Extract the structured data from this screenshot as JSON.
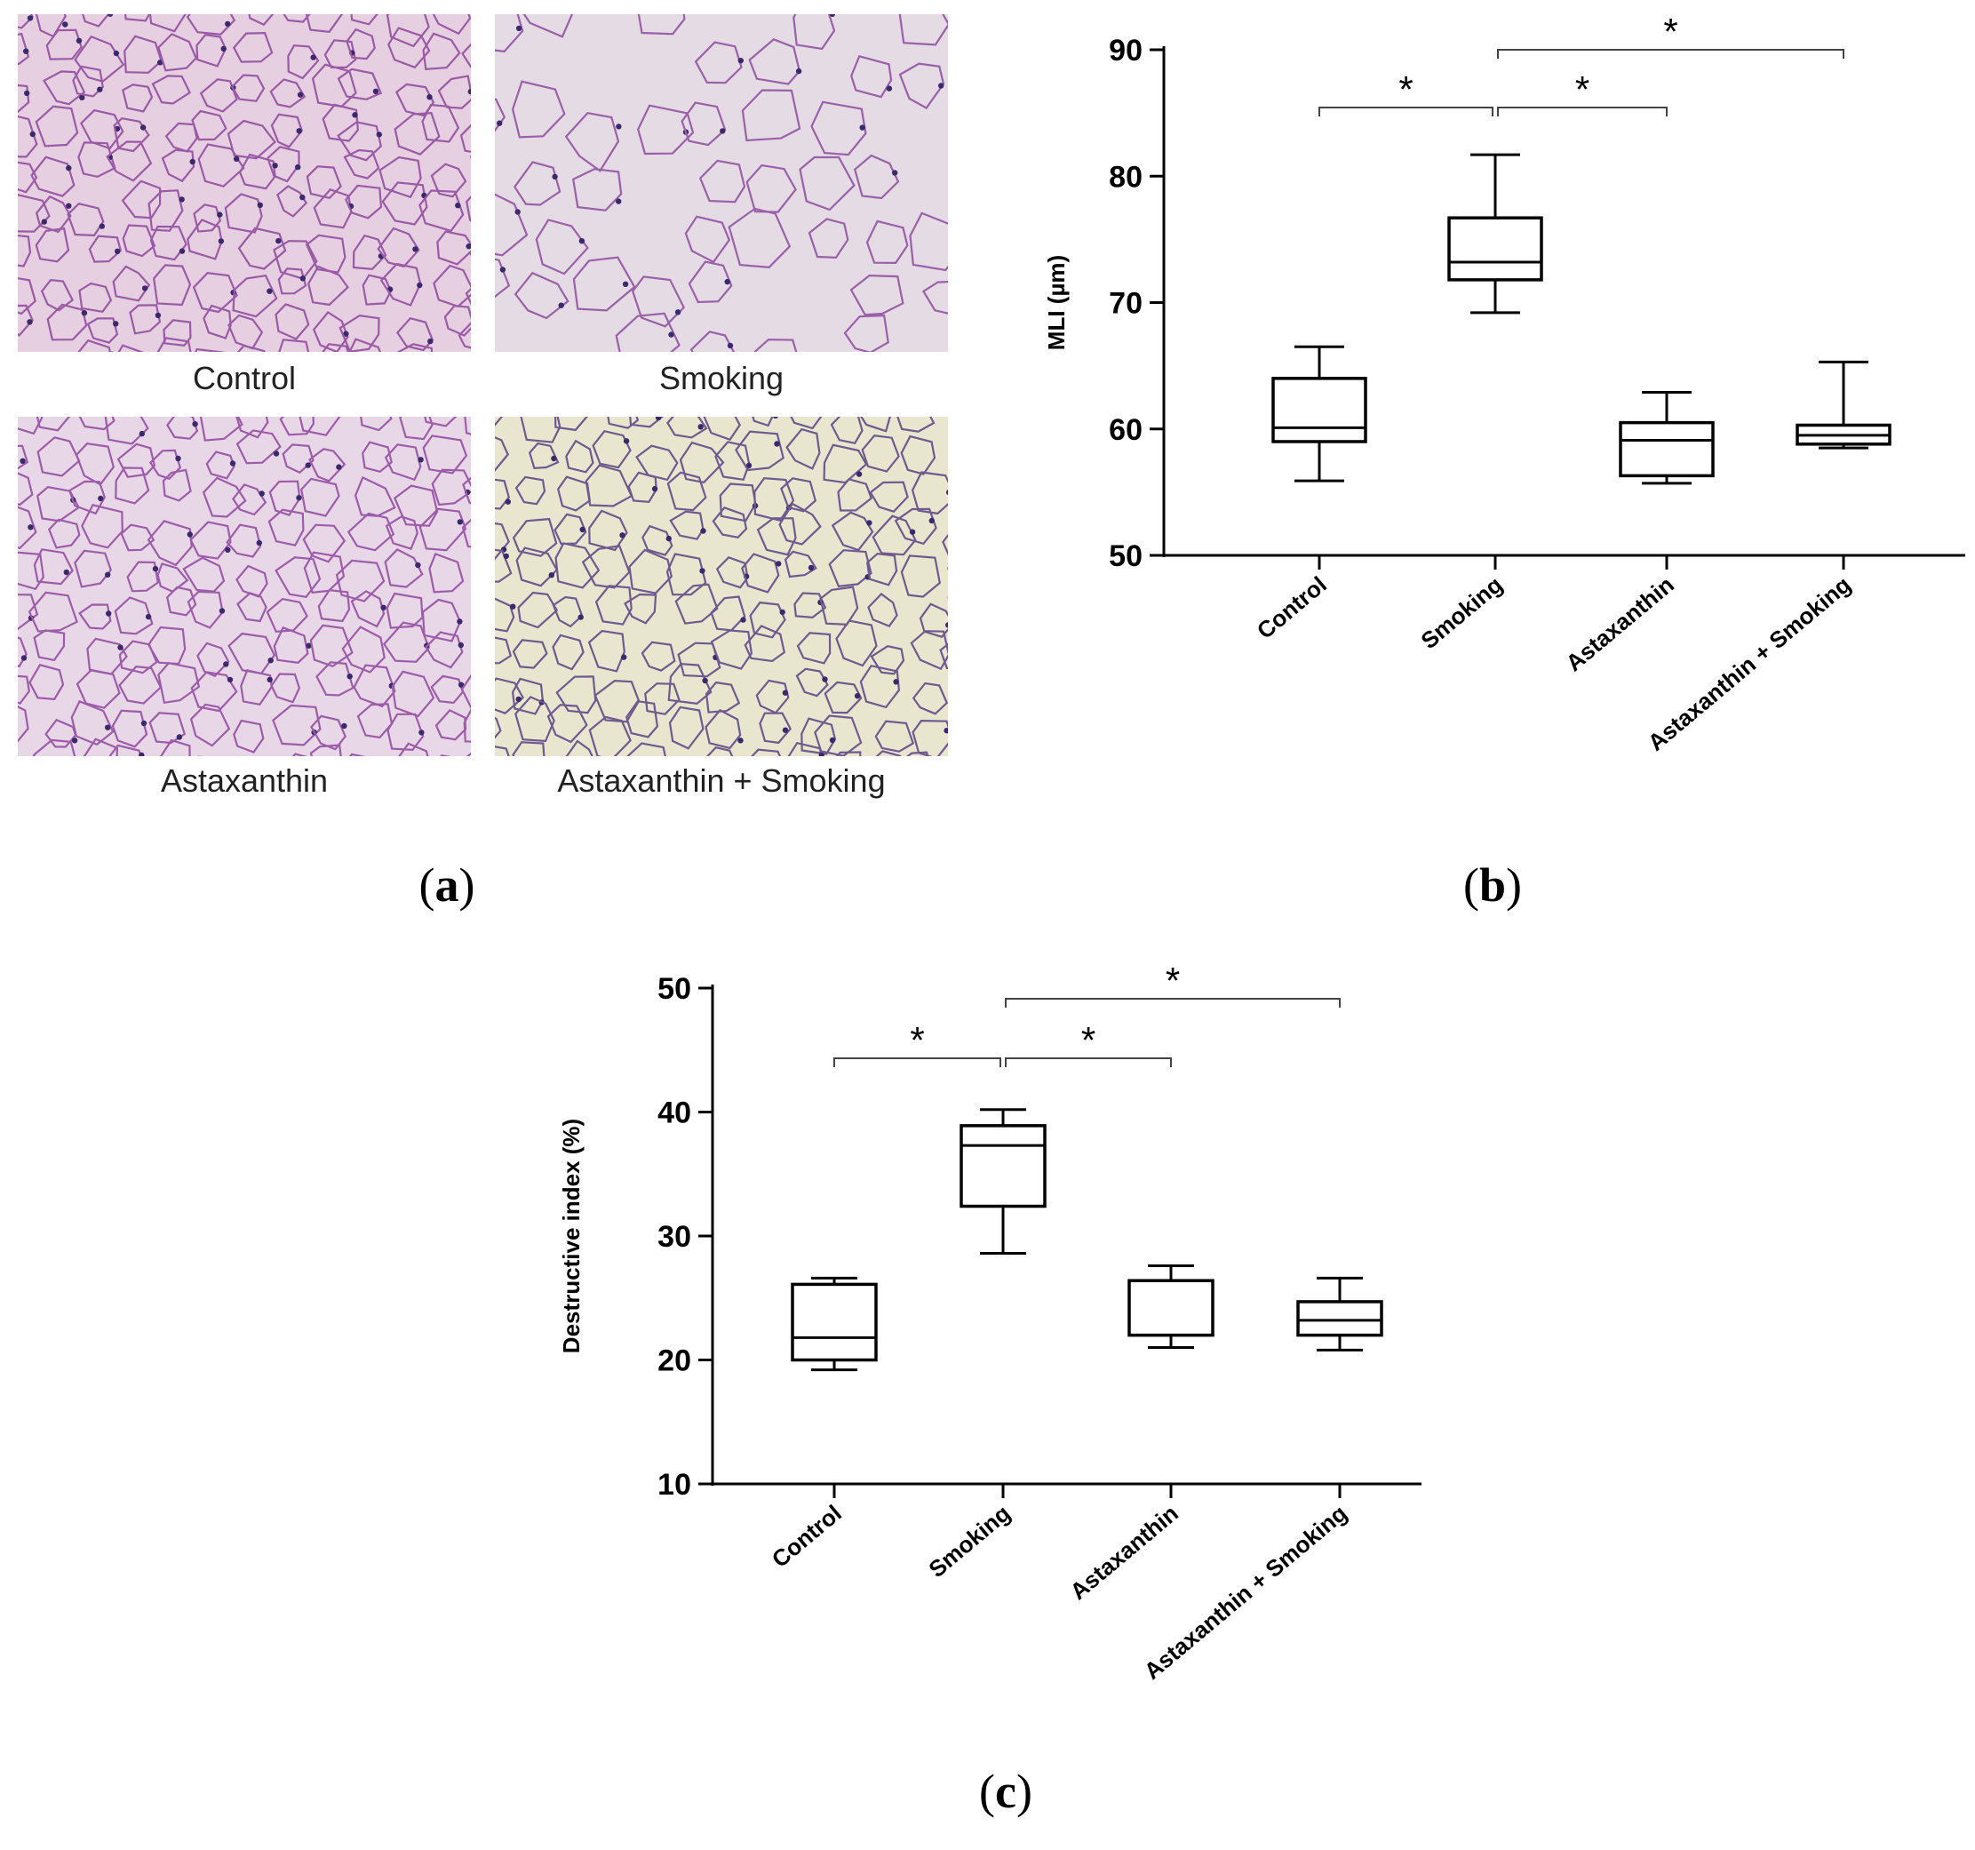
{
  "panel_a": {
    "images": [
      {
        "caption": "Control",
        "tone": "#e6cfe0",
        "wall": "#9a5aa6"
      },
      {
        "caption": "Smoking",
        "tone": "#e4dbe4",
        "wall": "#9a60a8"
      },
      {
        "caption": "Astaxanthin",
        "tone": "#e8d7e6",
        "wall": "#9d5ca9"
      },
      {
        "caption": "Astaxanthin + Smoking",
        "tone": "#e9e6cf",
        "wall": "#6e5a8e"
      }
    ]
  },
  "labels": {
    "a": "a",
    "b": "b",
    "c": "c"
  },
  "chart_data": [
    {
      "type": "box",
      "ylabel": "MLI (µm)",
      "ylim": [
        50,
        90
      ],
      "yticks": [
        50,
        60,
        70,
        80,
        90
      ],
      "categories": [
        "Control",
        "Smoking",
        "Astaxanthin",
        "Astaxanthin + Smoking"
      ],
      "boxes": [
        {
          "min": 55.9,
          "q1": 59.0,
          "median": 60.1,
          "q3": 64.0,
          "max": 66.5
        },
        {
          "min": 69.2,
          "q1": 71.8,
          "median": 73.2,
          "q3": 76.7,
          "max": 81.7
        },
        {
          "min": 55.7,
          "q1": 56.3,
          "median": 59.1,
          "q3": 60.5,
          "max": 62.9
        },
        {
          "min": 58.5,
          "q1": 58.8,
          "median": 59.5,
          "q3": 60.3,
          "max": 65.3
        }
      ],
      "significance": [
        {
          "from": 0,
          "to": 1,
          "label": "*"
        },
        {
          "from": 1,
          "to": 2,
          "label": "*"
        },
        {
          "from": 1,
          "to": 3,
          "label": "*"
        }
      ]
    },
    {
      "type": "box",
      "ylabel": "Destructive index (%)",
      "ylim": [
        10,
        50
      ],
      "yticks": [
        10,
        20,
        30,
        40,
        50
      ],
      "categories": [
        "Control",
        "Smoking",
        "Astaxanthin",
        "Astaxanthin + Smoking"
      ],
      "boxes": [
        {
          "min": 19.2,
          "q1": 20.0,
          "median": 21.8,
          "q3": 26.1,
          "max": 26.6
        },
        {
          "min": 28.6,
          "q1": 32.4,
          "median": 37.3,
          "q3": 38.9,
          "max": 40.2
        },
        {
          "min": 21.0,
          "q1": 22.0,
          "median": 22.0,
          "q3": 26.4,
          "max": 27.6
        },
        {
          "min": 20.8,
          "q1": 22.0,
          "median": 23.2,
          "q3": 24.7,
          "max": 26.6
        }
      ],
      "significance": [
        {
          "from": 0,
          "to": 1,
          "label": "*"
        },
        {
          "from": 1,
          "to": 2,
          "label": "*"
        },
        {
          "from": 1,
          "to": 3,
          "label": "*"
        }
      ]
    }
  ]
}
